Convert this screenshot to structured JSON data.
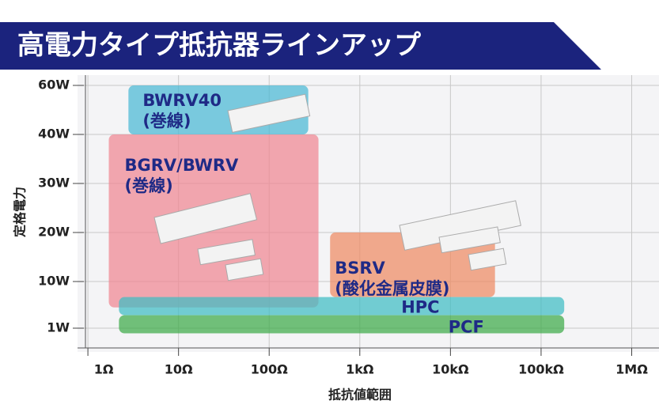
{
  "chart_data": {
    "type": "range",
    "title": "高電力タイプ抵抗器ラインアップ",
    "x_label": "抵抗値範囲",
    "y_label": "定格電力",
    "x_log": true,
    "grid": true,
    "xlim": [
      0.8,
      2000000
    ],
    "xticks": [
      {
        "value": 1,
        "label": "1Ω"
      },
      {
        "value": 10,
        "label": "10Ω"
      },
      {
        "value": 100,
        "label": "100Ω"
      },
      {
        "value": 1000,
        "label": "1kΩ"
      },
      {
        "value": 10000,
        "label": "10kΩ"
      },
      {
        "value": 100000,
        "label": "100kΩ"
      },
      {
        "value": 1000000,
        "label": "1MΩ"
      }
    ],
    "ylim": [
      0,
      60
    ],
    "yticks": [
      {
        "value": 1,
        "label": "1W"
      },
      {
        "value": 10,
        "label": "10W"
      },
      {
        "value": 20,
        "label": "20W"
      },
      {
        "value": 30,
        "label": "30W"
      },
      {
        "value": 40,
        "label": "40W"
      },
      {
        "value": 60,
        "label": "60W"
      }
    ],
    "series": [
      {
        "name": "BWRV40",
        "note": "(巻線)",
        "color": "#49b8d4",
        "x": [
          2.8,
          270
        ],
        "y": [
          40,
          60
        ]
      },
      {
        "name": "BGRV/BWRV",
        "note": "(巻線)",
        "color": "#f08792",
        "x": [
          1.7,
          350
        ],
        "y": [
          5,
          40
        ]
      },
      {
        "name": "BSRV",
        "note": "(酸化金属皮膜)",
        "color": "#ee8a63",
        "x": [
          470,
          31000
        ],
        "y": [
          7,
          20
        ]
      },
      {
        "name": "HPC",
        "color": "#3fbcc4",
        "x": [
          2.2,
          180000
        ],
        "y": [
          3.5,
          7
        ]
      },
      {
        "name": "PCF",
        "color": "#3dab48",
        "x": [
          2.2,
          180000
        ],
        "y": [
          0,
          3.5
        ]
      }
    ]
  }
}
